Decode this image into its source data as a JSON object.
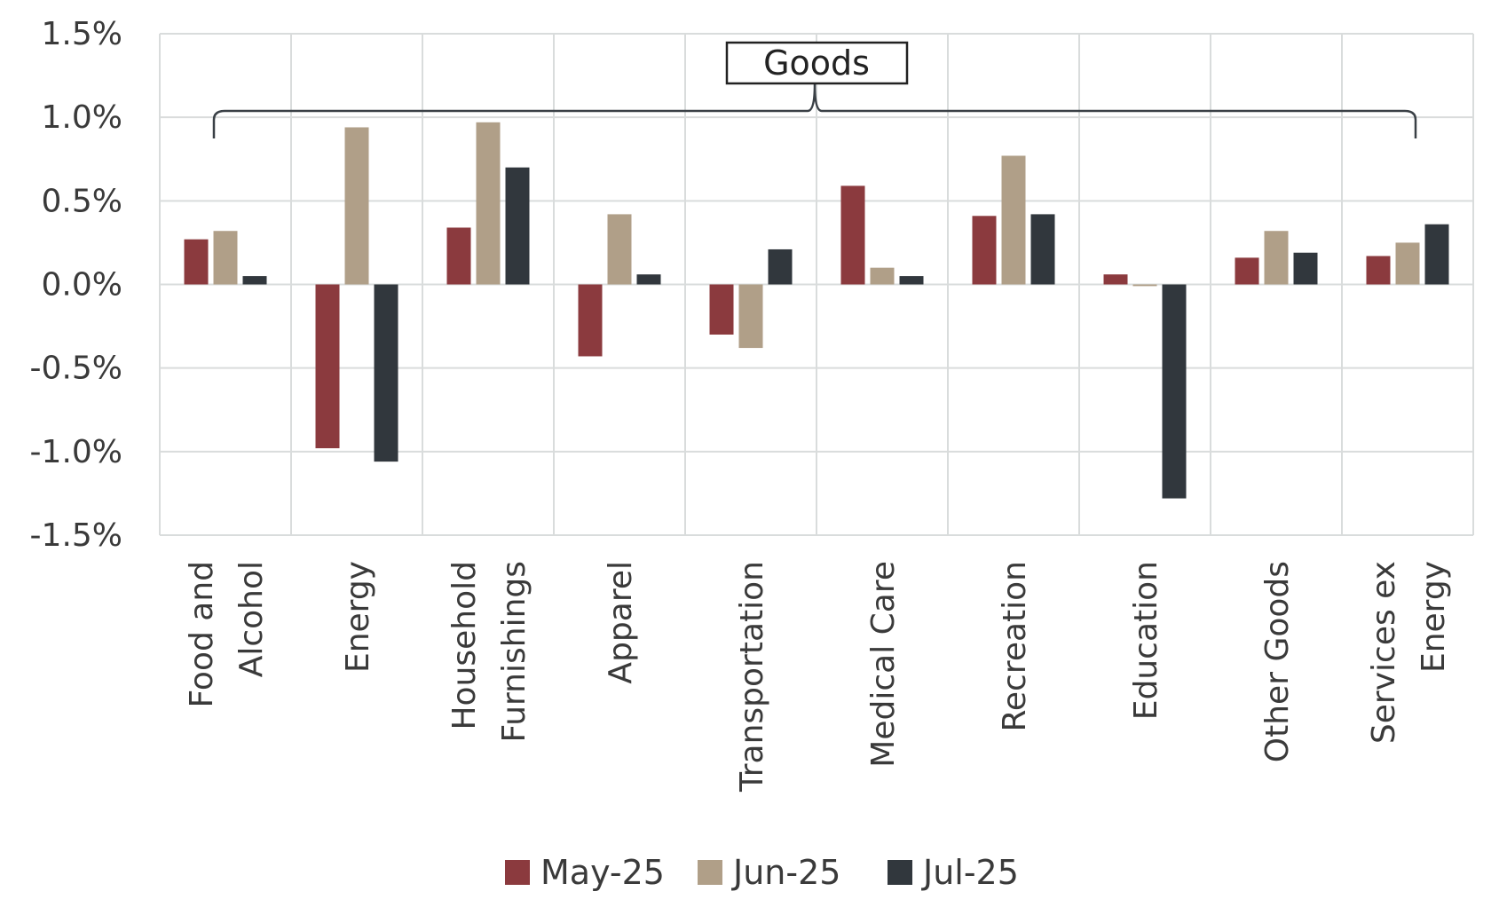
{
  "chart_data": {
    "type": "bar",
    "title": "",
    "xlabel": "",
    "ylabel": "",
    "ylim": [
      -1.5,
      1.5
    ],
    "yticks": [
      1.5,
      1.0,
      0.5,
      0.0,
      -0.5,
      -1.0,
      -1.5
    ],
    "ytick_labels": [
      "1.5%",
      "1.0%",
      "0.5%",
      "0.0%",
      "-0.5%",
      "-1.0%",
      "-1.5%"
    ],
    "grid": true,
    "legend_position": "bottom",
    "categories": [
      [
        "Food and",
        "Alcohol"
      ],
      [
        "Energy"
      ],
      [
        "Household",
        "Furnishings"
      ],
      [
        "Apparel"
      ],
      [
        "Transportation"
      ],
      [
        "Medical Care"
      ],
      [
        "Recreation"
      ],
      [
        "Education"
      ],
      [
        "Other Goods"
      ],
      [
        "Services ex",
        "Energy"
      ]
    ],
    "series": [
      {
        "name": "May-25",
        "color": "#8B3A3E",
        "values": [
          0.27,
          -0.98,
          0.34,
          -0.43,
          -0.3,
          0.59,
          0.41,
          0.06,
          0.16,
          0.17
        ]
      },
      {
        "name": "Jun-25",
        "color": "#B09F88",
        "values": [
          0.32,
          0.94,
          0.97,
          0.42,
          -0.38,
          0.1,
          0.77,
          -0.01,
          0.32,
          0.25
        ]
      },
      {
        "name": "Jul-25",
        "color": "#31373D",
        "values": [
          0.05,
          -1.06,
          0.7,
          0.06,
          0.21,
          0.05,
          0.42,
          -1.28,
          0.19,
          0.36
        ]
      }
    ],
    "annotations": [
      {
        "text": "Goods",
        "type": "bracket",
        "from_category": 0,
        "to_category": 9
      }
    ]
  }
}
